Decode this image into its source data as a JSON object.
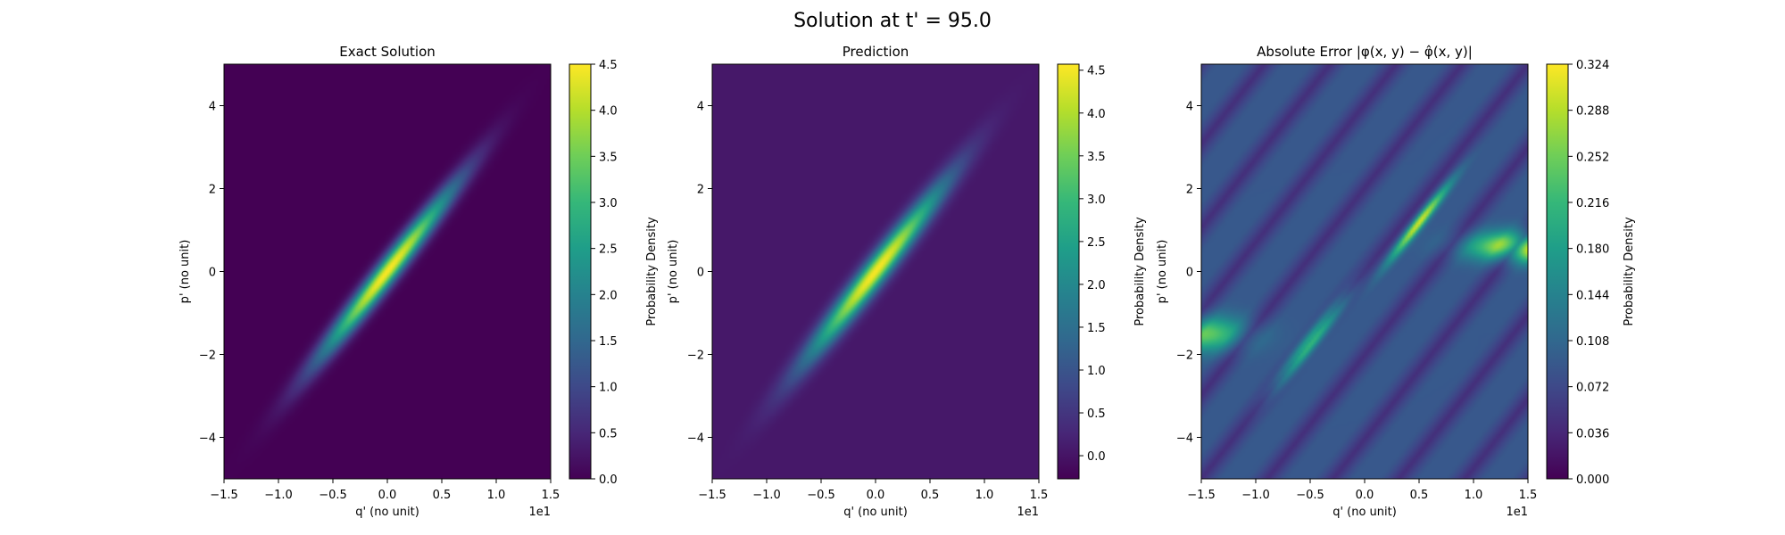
{
  "suptitle": "Solution at t' = 95.0",
  "chart_data": [
    {
      "type": "heatmap",
      "title": "Exact Solution",
      "xlabel": "q' (no unit)",
      "ylabel": "p' (no unit)",
      "xlim": [
        -1.5,
        1.5
      ],
      "ylim": [
        -5,
        5
      ],
      "x_offset_text": "1e1",
      "x_ticks": [
        -1.5,
        -1.0,
        -0.5,
        0.0,
        0.5,
        1.0,
        1.5
      ],
      "x_tick_labels": [
        "−1.5",
        "−1.0",
        "−0.5",
        "0.0",
        "0.5",
        "1.0",
        "1.5"
      ],
      "y_ticks": [
        -4,
        -2,
        0,
        2,
        4
      ],
      "y_tick_labels": [
        "−4",
        "−2",
        "0",
        "2",
        "4"
      ],
      "colormap": "viridis",
      "colorbar": {
        "label": "Probability Density",
        "range": [
          0.0,
          4.5
        ],
        "ticks": [
          0.0,
          0.5,
          1.0,
          1.5,
          2.0,
          2.5,
          3.0,
          3.5,
          4.0,
          4.5
        ],
        "tick_labels": [
          "0.0",
          "0.5",
          "1.0",
          "1.5",
          "2.0",
          "2.5",
          "3.0",
          "3.5",
          "4.0",
          "4.5"
        ]
      },
      "field": {
        "kind": "gaussian_ellipse",
        "center": [
          0.0,
          0.0
        ],
        "peak": 4.5,
        "angle_deg": 45,
        "sigma_major": 2.0,
        "sigma_minor": 0.2,
        "background": 0.0
      }
    },
    {
      "type": "heatmap",
      "title": "Prediction",
      "xlabel": "q' (no unit)",
      "ylabel": "p' (no unit)",
      "xlim": [
        -1.5,
        1.5
      ],
      "ylim": [
        -5,
        5
      ],
      "x_offset_text": "1e1",
      "x_ticks": [
        -1.5,
        -1.0,
        -0.5,
        0.0,
        0.5,
        1.0,
        1.5
      ],
      "x_tick_labels": [
        "−1.5",
        "−1.0",
        "−0.5",
        "0.0",
        "0.5",
        "1.0",
        "1.5"
      ],
      "y_ticks": [
        -4,
        -2,
        0,
        2,
        4
      ],
      "y_tick_labels": [
        "−4",
        "−2",
        "0",
        "2",
        "4"
      ],
      "colormap": "viridis",
      "colorbar": {
        "label": "Probability Density",
        "range": [
          -0.27,
          4.57
        ],
        "ticks": [
          0.0,
          0.5,
          1.0,
          1.5,
          2.0,
          2.5,
          3.0,
          3.5,
          4.0,
          4.5
        ],
        "tick_labels": [
          "0.0",
          "0.5",
          "1.0",
          "1.5",
          "2.0",
          "2.5",
          "3.0",
          "3.5",
          "4.0",
          "4.5"
        ]
      },
      "field": {
        "kind": "gaussian_ellipse",
        "center": [
          0.0,
          0.0
        ],
        "peak": 4.5,
        "angle_deg": 45,
        "sigma_major": 2.0,
        "sigma_minor": 0.22,
        "background": 0.05
      }
    },
    {
      "type": "heatmap",
      "title": "Absolute Error |φ(x, y) − φ̂(x, y)|",
      "xlabel": "q' (no unit)",
      "ylabel": "p' (no unit)",
      "xlim": [
        -1.5,
        1.5
      ],
      "ylim": [
        -5,
        5
      ],
      "x_offset_text": "1e1",
      "x_ticks": [
        -1.5,
        -1.0,
        -0.5,
        0.0,
        0.5,
        1.0,
        1.5
      ],
      "x_tick_labels": [
        "−1.5",
        "−1.0",
        "−0.5",
        "0.0",
        "0.5",
        "1.0",
        "1.5"
      ],
      "y_ticks": [
        -4,
        -2,
        0,
        2,
        4
      ],
      "y_tick_labels": [
        "−4",
        "−2",
        "0",
        "2",
        "4"
      ],
      "colormap": "viridis",
      "colorbar": {
        "label": "Probability Density",
        "range": [
          0.0,
          0.324
        ],
        "ticks": [
          0.0,
          0.036,
          0.072,
          0.108,
          0.144,
          0.18,
          0.216,
          0.252,
          0.288,
          0.324
        ],
        "tick_labels": [
          "0.000",
          "0.036",
          "0.072",
          "0.108",
          "0.144",
          "0.180",
          "0.216",
          "0.252",
          "0.288",
          "0.324"
        ]
      },
      "field": {
        "kind": "error_bands",
        "lobes": [
          {
            "center": [
              -0.5,
              -1.7
            ],
            "peak": 0.3,
            "angle_deg": 45,
            "sigma_major": 1.0,
            "sigma_minor": 0.12
          },
          {
            "center": [
              0.5,
              1.2
            ],
            "peak": 0.24,
            "angle_deg": 45,
            "sigma_major": 0.9,
            "sigma_minor": 0.1
          },
          {
            "center": [
              1.5,
              0.6
            ],
            "peak": 0.26,
            "angle_deg": 0,
            "sigma_major": 1.2,
            "sigma_minor": 0.25
          },
          {
            "center": [
              -1.5,
              -1.5
            ],
            "peak": 0.16,
            "angle_deg": 0,
            "sigma_major": 1.0,
            "sigma_minor": 0.3
          }
        ],
        "background": 0.09
      }
    }
  ]
}
